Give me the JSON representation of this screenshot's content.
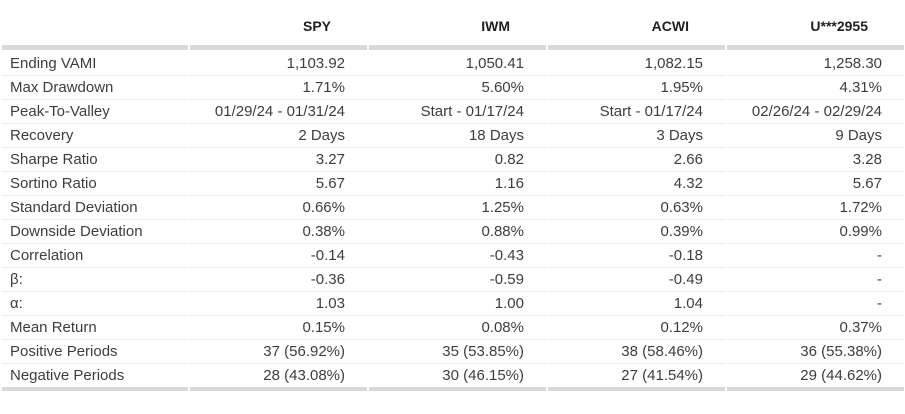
{
  "table": {
    "columns": [
      {
        "label": ""
      },
      {
        "label": "SPY"
      },
      {
        "label": "IWM"
      },
      {
        "label": "ACWI"
      },
      {
        "label": "U***2955"
      }
    ],
    "rows": [
      {
        "metric": "Ending VAMI",
        "values": [
          "1,103.92",
          "1,050.41",
          "1,082.15",
          "1,258.30"
        ]
      },
      {
        "metric": "Max Drawdown",
        "values": [
          "1.71%",
          "5.60%",
          "1.95%",
          "4.31%"
        ]
      },
      {
        "metric": "Peak-To-Valley",
        "values": [
          "01/29/24 - 01/31/24",
          "Start - 01/17/24",
          "Start - 01/17/24",
          "02/26/24 - 02/29/24"
        ]
      },
      {
        "metric": "Recovery",
        "values": [
          "2 Days",
          "18 Days",
          "3 Days",
          "9 Days"
        ]
      },
      {
        "metric": "Sharpe Ratio",
        "values": [
          "3.27",
          "0.82",
          "2.66",
          "3.28"
        ]
      },
      {
        "metric": "Sortino Ratio",
        "values": [
          "5.67",
          "1.16",
          "4.32",
          "5.67"
        ]
      },
      {
        "metric": "Standard Deviation",
        "values": [
          "0.66%",
          "1.25%",
          "0.63%",
          "1.72%"
        ]
      },
      {
        "metric": "Downside Deviation",
        "values": [
          "0.38%",
          "0.88%",
          "0.39%",
          "0.99%"
        ]
      },
      {
        "metric": "Correlation",
        "values": [
          "-0.14",
          "-0.43",
          "-0.18",
          "-"
        ]
      },
      {
        "metric": "β:",
        "values": [
          "-0.36",
          "-0.59",
          "-0.49",
          "-"
        ]
      },
      {
        "metric": "α:",
        "values": [
          "1.03",
          "1.00",
          "1.04",
          "-"
        ]
      },
      {
        "metric": "Mean Return",
        "values": [
          "0.15%",
          "0.08%",
          "0.12%",
          "0.37%"
        ]
      },
      {
        "metric": "Positive Periods",
        "values": [
          "37 (56.92%)",
          "35 (53.85%)",
          "38 (58.46%)",
          "36 (55.38%)"
        ]
      },
      {
        "metric": "Negative Periods",
        "values": [
          "28 (43.08%)",
          "30 (46.15%)",
          "27 (41.54%)",
          "29 (44.62%)"
        ]
      }
    ]
  },
  "colors": {
    "background": "#ffffff",
    "body_text": "#3d3d3d",
    "header_text": "#1f1f1f",
    "row_divider": "#ebebeb",
    "thick_band": "#d9d9d9"
  }
}
